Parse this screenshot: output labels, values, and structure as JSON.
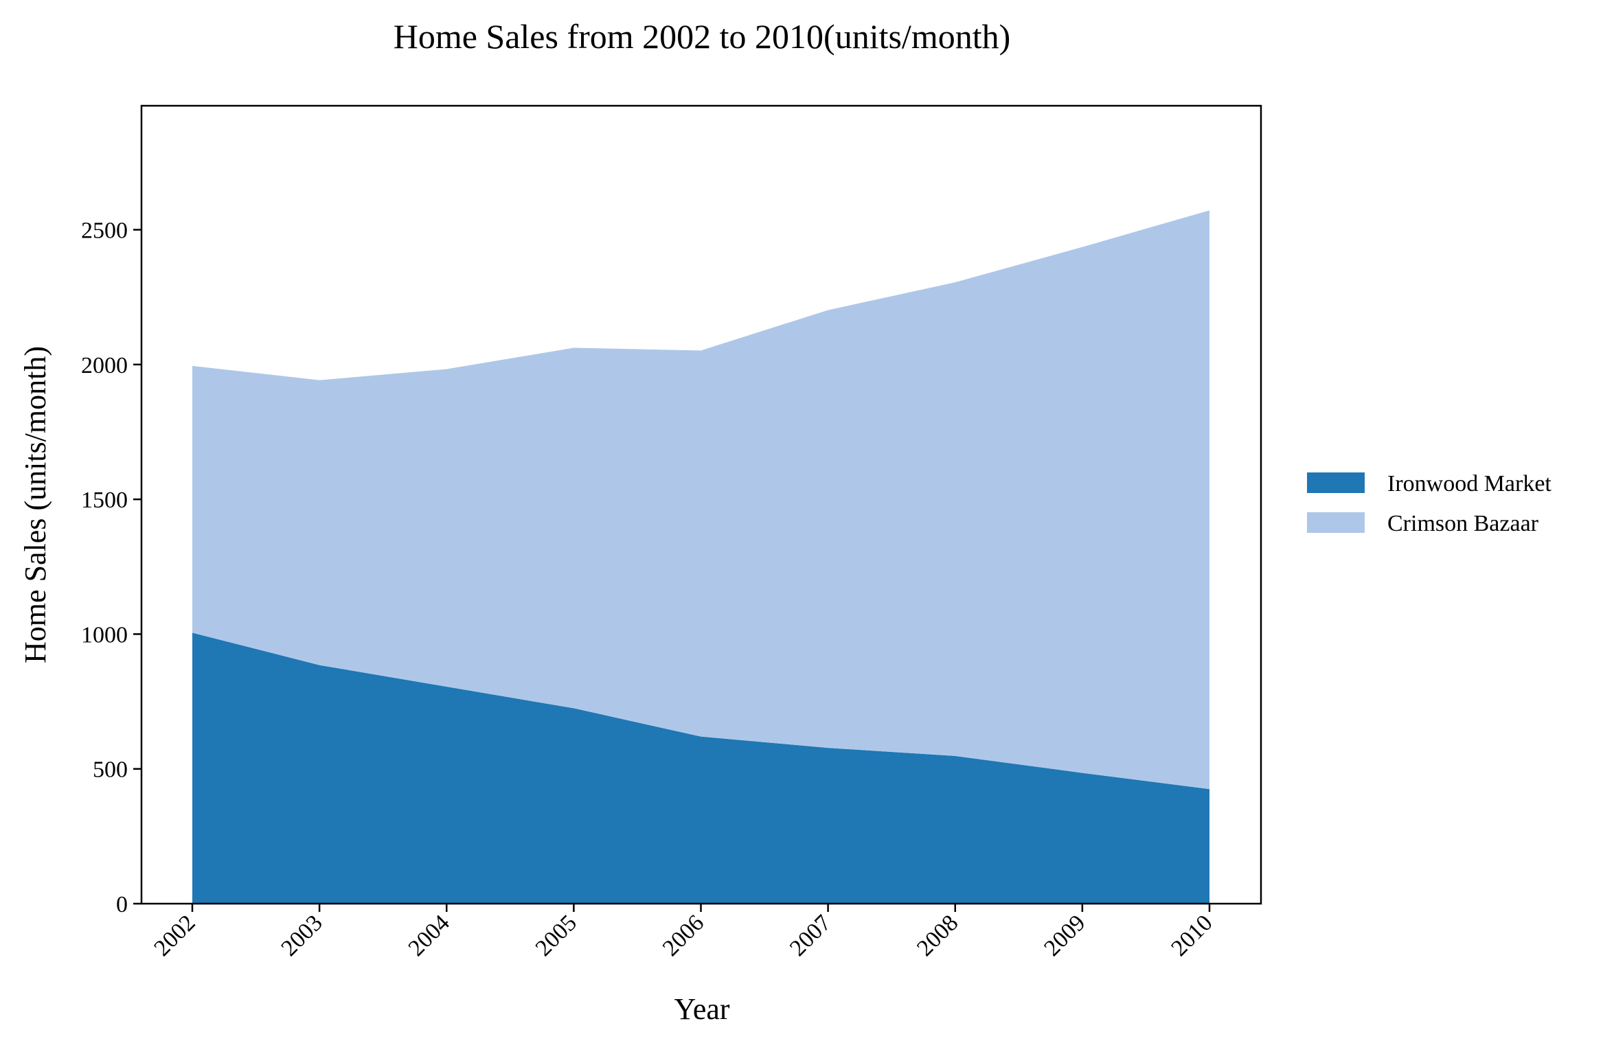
{
  "chart_data": {
    "type": "area",
    "stacked": true,
    "title": "Home Sales from 2002 to 2010(units/month)",
    "xlabel": "Year",
    "ylabel": "Home Sales (units/month)",
    "categories": [
      "2002",
      "2003",
      "2004",
      "2005",
      "2006",
      "2007",
      "2008",
      "2009",
      "2010"
    ],
    "series": [
      {
        "name": "Ironwood Market",
        "color": "#1f77b4",
        "values": [
          1005,
          885,
          805,
          725,
          620,
          578,
          548,
          485,
          425
        ]
      },
      {
        "name": "Crimson Bazaar",
        "color": "#aec7e8",
        "values": [
          990,
          1057,
          1178,
          1337,
          1432,
          1624,
          1757,
          1951,
          2147
        ]
      }
    ],
    "ylim": [
      0,
      2960
    ],
    "yticks": [
      0,
      500,
      1000,
      1500,
      2000,
      2500
    ],
    "grid": false,
    "legend_position": "right"
  }
}
